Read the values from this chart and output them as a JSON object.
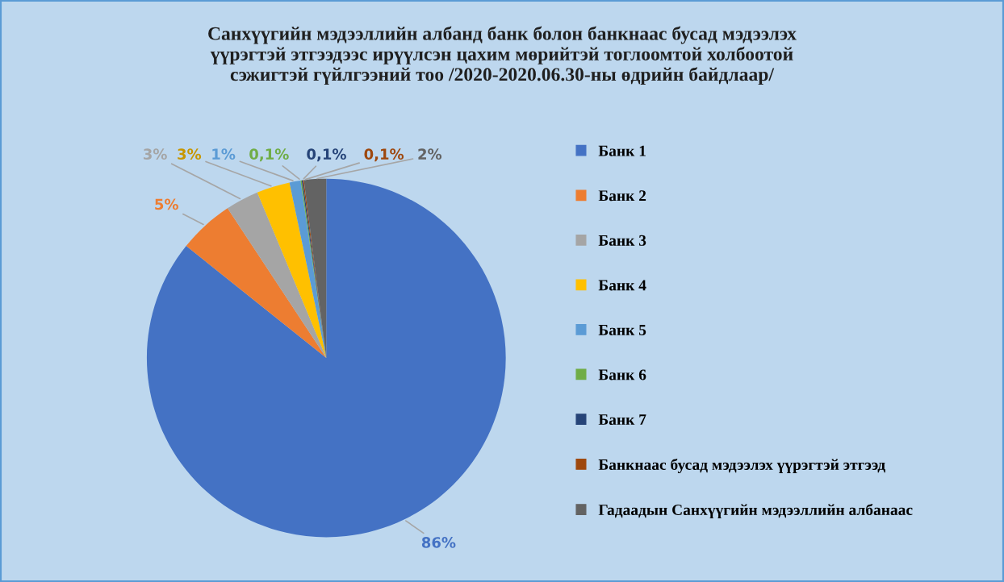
{
  "chart_data": {
    "type": "pie",
    "title": "Санхүүгийн мэдээллийн албанд банк болон банкнаас бусад мэдээлэх\nүүрэгтэй этгээдээс ирүүлсэн цахим мөрийтэй тоглоомтой холбоотой\nсэжигтэй гүйлгээний тоо /2020-2020.06.30-ны өдрийн байдлаар/",
    "categories": [
      "Банк 1",
      "Банк 2",
      "Банк 3",
      "Банк 4",
      "Банк 5",
      "Банк 6",
      "Банк 7",
      "Банкнаас бусад мэдээлэх үүрэгтэй этгээд",
      "Гадаадын Санхүүгийн мэдээллийн албанаас"
    ],
    "values": [
      86,
      5,
      3,
      3,
      1,
      0.1,
      0.1,
      0.1,
      2
    ],
    "value_labels": [
      "86%",
      "5%",
      "3%",
      "3%",
      "1%",
      "0,1%",
      "0,1%",
      "0,1%",
      "2%"
    ],
    "colors": [
      "#4472c4",
      "#ed7d31",
      "#a5a5a5",
      "#ffc000",
      "#5b9bd5",
      "#70ad47",
      "#264478",
      "#9e480e",
      "#636363"
    ],
    "legend": "right"
  }
}
